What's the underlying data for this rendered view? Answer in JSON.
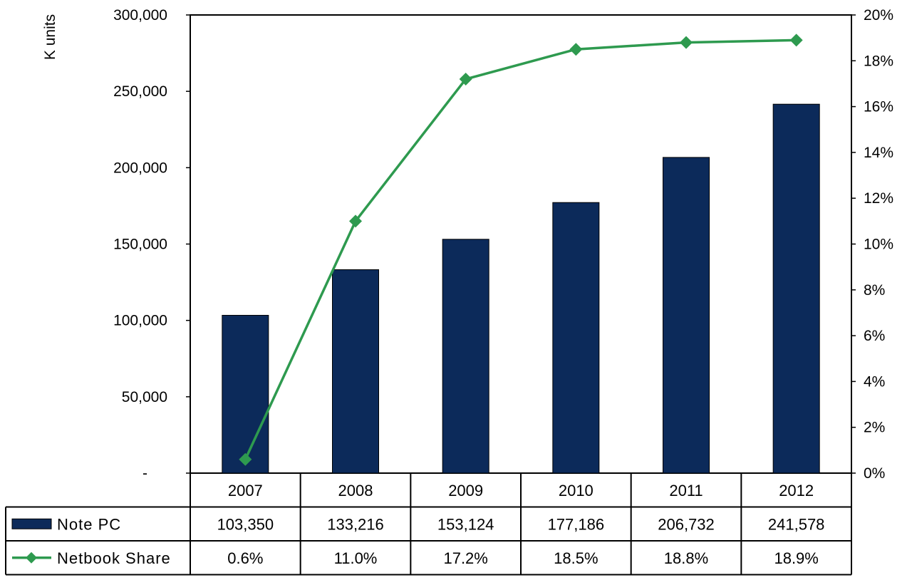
{
  "chart_data": {
    "type": "bar",
    "categories": [
      "2007",
      "2008",
      "2009",
      "2010",
      "2011",
      "2012"
    ],
    "series": [
      {
        "name": "Note PC",
        "kind": "bar",
        "axis": "left",
        "color": "#0c2a5a",
        "values": [
          103350,
          133216,
          153124,
          177186,
          206732,
          241578
        ],
        "labels": [
          "103,350",
          "133,216",
          "153,124",
          "177,186",
          "206,732",
          "241,578"
        ]
      },
      {
        "name": "Netbook Share",
        "kind": "line",
        "axis": "right",
        "color": "#2e9a4f",
        "values": [
          0.6,
          11.0,
          17.2,
          18.5,
          18.8,
          18.9
        ],
        "labels": [
          "0.6%",
          "11.0%",
          "17.2%",
          "18.5%",
          "18.8%",
          "18.9%"
        ]
      }
    ],
    "ylabel": "K units",
    "ylim": [
      0,
      300000
    ],
    "y_ticks": [
      "-",
      "50,000",
      "100,000",
      "150,000",
      "200,000",
      "250,000",
      "300,000"
    ],
    "y2lim": [
      0,
      20
    ],
    "y2_ticks": [
      "0%",
      "2%",
      "4%",
      "6%",
      "8%",
      "10%",
      "12%",
      "14%",
      "16%",
      "18%",
      "20%"
    ],
    "grid": false,
    "legend": "data-table"
  }
}
